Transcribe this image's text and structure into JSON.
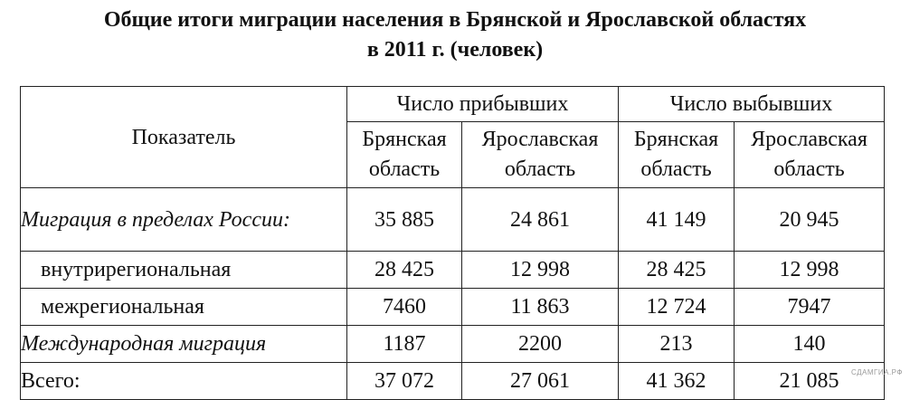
{
  "title": {
    "line1": "Общие итоги миграции населения в Брянской и Ярославской областях",
    "line2": "в 2011 г. (человек)"
  },
  "table": {
    "indicator_header": "Показатель",
    "group_headers": [
      "Число прибывших",
      "Число выбывших"
    ],
    "region_headers": [
      {
        "line1": "Брянская",
        "line2": "область"
      },
      {
        "line1": "Ярославская",
        "line2": "область"
      },
      {
        "line1": "Брянская",
        "line2": "область"
      },
      {
        "line1": "Ярославская",
        "line2": "область"
      }
    ],
    "rows": [
      {
        "label": "Миграция в пределах России:",
        "values": [
          "35 885",
          "24 861",
          "41 149",
          "20 945"
        ]
      },
      {
        "label": "внутрирегиональная",
        "values": [
          "28 425",
          "12 998",
          "28 425",
          "12 998"
        ]
      },
      {
        "label": "межрегиональная",
        "values": [
          "7460",
          "11 863",
          "12 724",
          "7947"
        ]
      },
      {
        "label": "Международная миграция",
        "values": [
          "1187",
          "2200",
          "213",
          "140"
        ]
      },
      {
        "label": "Всего:",
        "values": [
          "37 072",
          "27 061",
          "41 362",
          "21 085"
        ]
      }
    ]
  },
  "watermark": "СДАМГИА.РФ"
}
